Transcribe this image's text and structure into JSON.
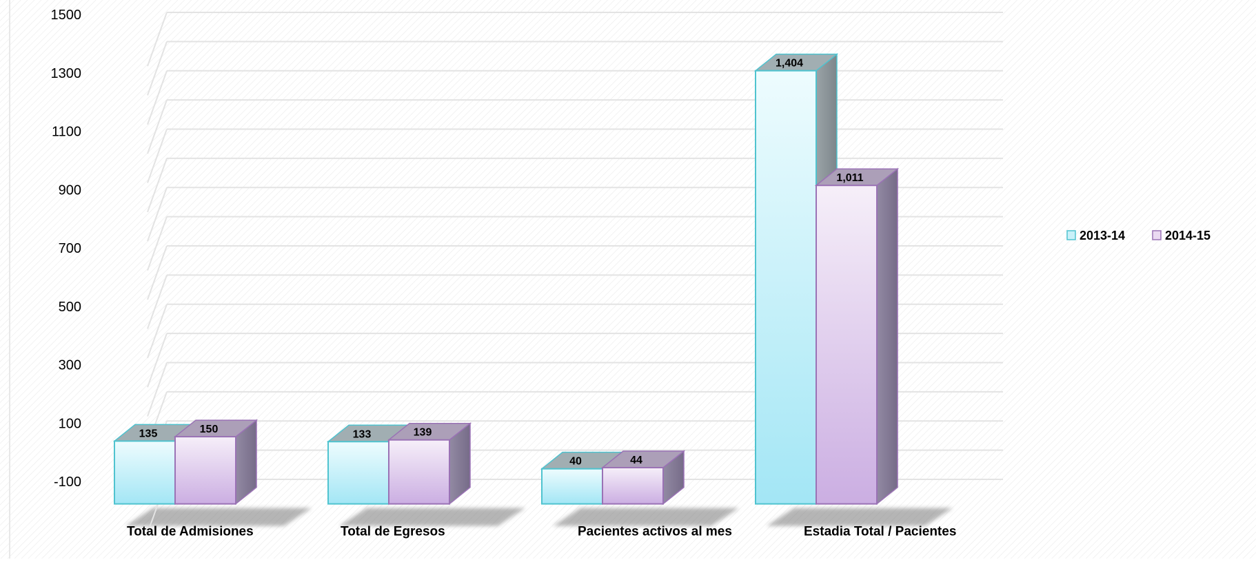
{
  "chart_data": {
    "type": "bar",
    "categories": [
      "Total de Admisiones",
      "Total de Egresos",
      "Pacientes activos al mes",
      "Estadia Total / Pacientes"
    ],
    "series": [
      {
        "name": "2013-14",
        "values": [
          135,
          133,
          40,
          1404
        ],
        "labels": [
          "135",
          "133",
          "40",
          "1,404"
        ]
      },
      {
        "name": "2014-15",
        "values": [
          150,
          139,
          44,
          1011
        ],
        "labels": [
          "150",
          "139",
          "44",
          "1,011"
        ]
      }
    ],
    "y_ticks": [
      -100,
      100,
      300,
      500,
      700,
      900,
      1100,
      1300,
      1500
    ],
    "y_tick_labels": [
      "-100",
      "100",
      "300",
      "500",
      "700",
      "900",
      "1100",
      "1300",
      "1500"
    ],
    "ylim": [
      -100,
      1500
    ],
    "grid": true,
    "three_d": true,
    "legend_position": "right",
    "colors": {
      "2013-14": {
        "fill": "#c9f1f9",
        "fill_dark": "#9fe4f4",
        "edge": "#4fc3cf",
        "side": "#8c949a",
        "top": "#a1aeb2"
      },
      "2014-15": {
        "fill": "#ead9f1",
        "fill_dark": "#cfb3e4",
        "edge": "#9a72b5",
        "side": "#7f7390",
        "top": "#ac9fb8"
      },
      "grid": "#e6e6e6",
      "text": "#000000"
    }
  }
}
